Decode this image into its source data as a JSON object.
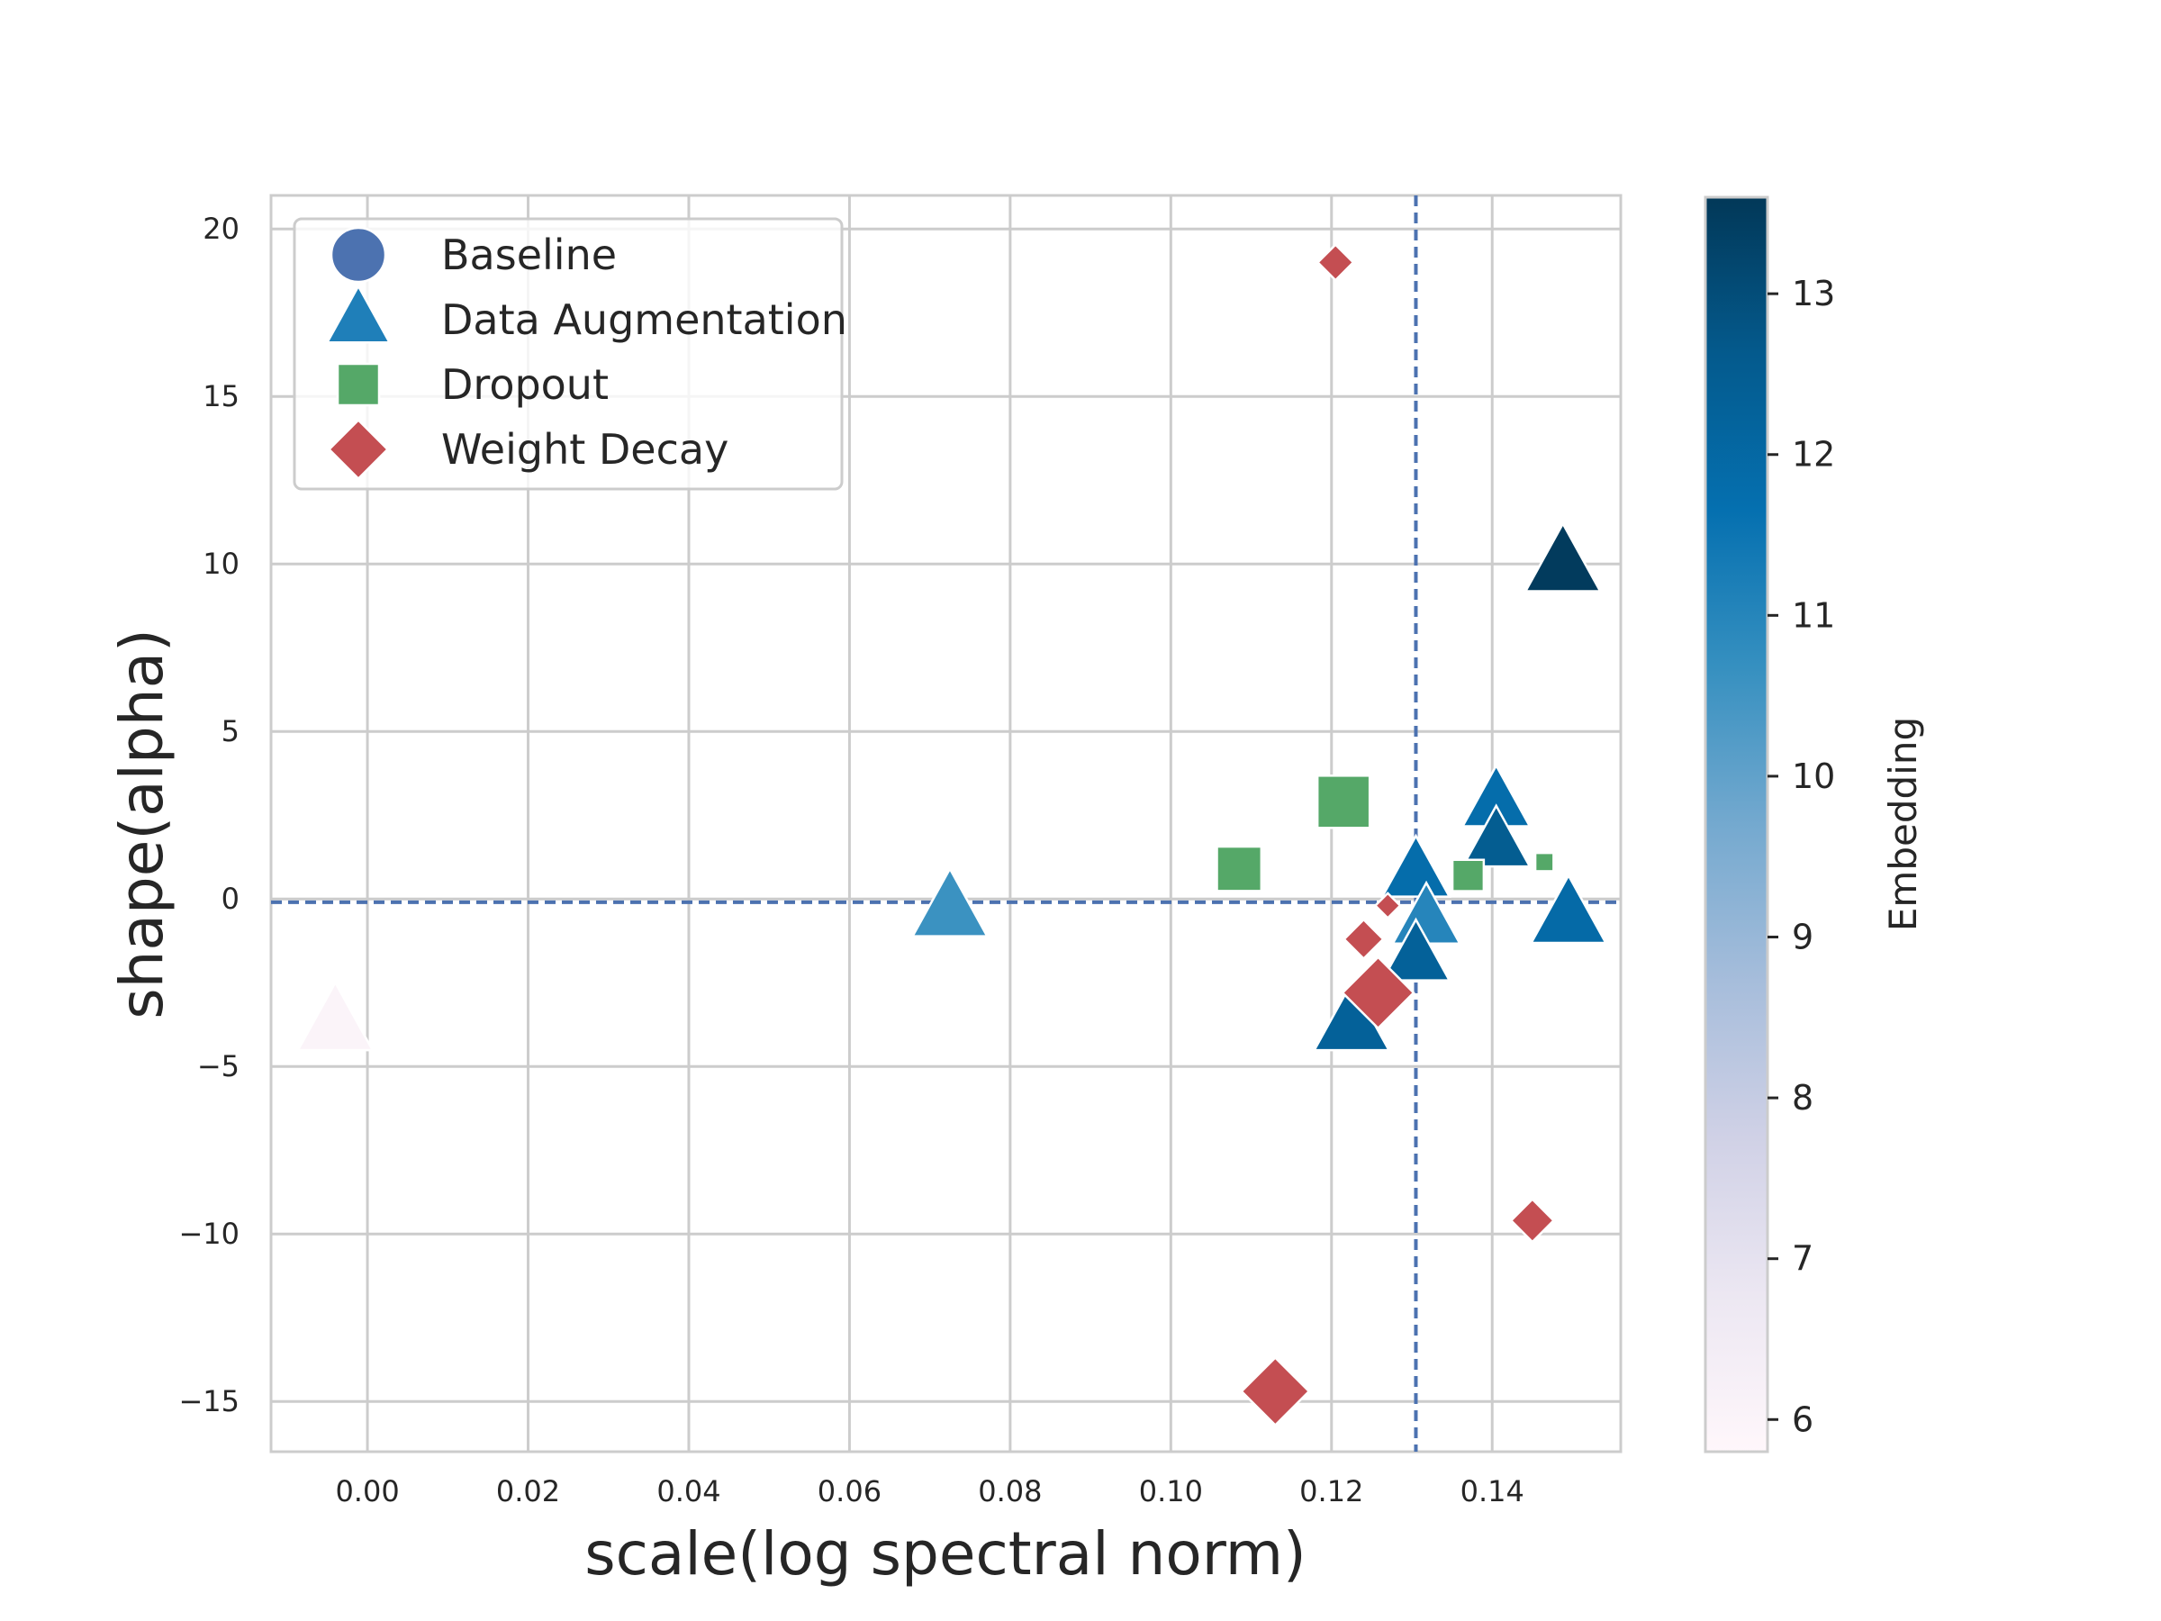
{
  "chart_data": {
    "type": "scatter",
    "xlabel": "scale(log spectral norm)",
    "ylabel": "shape(alpha)",
    "xlim": [
      -0.012,
      0.156
    ],
    "ylim": [
      -16.5,
      21
    ],
    "x_ticks": [
      0.0,
      0.02,
      0.04,
      0.06,
      0.08,
      0.1,
      0.12,
      0.14
    ],
    "x_tick_labels": [
      "0.00",
      "0.02",
      "0.04",
      "0.06",
      "0.08",
      "0.10",
      "0.12",
      "0.14"
    ],
    "y_ticks": [
      -15,
      -10,
      -5,
      0,
      5,
      10,
      15,
      20
    ],
    "y_tick_labels": [
      "−15",
      "−10",
      "−5",
      "0",
      "5",
      "10",
      "15",
      "20"
    ],
    "grid": true,
    "reference_lines": {
      "x": 0.1305,
      "y": -0.1,
      "color": "#4c72b0",
      "style": "dashed"
    },
    "legend": {
      "position": "top-left",
      "entries": [
        {
          "label": "Baseline",
          "marker": "circle",
          "color": "#4c72b0"
        },
        {
          "label": "Data Augmentation",
          "marker": "triangle",
          "color": "#1f7fb9"
        },
        {
          "label": "Dropout",
          "marker": "square",
          "color": "#55a868"
        },
        {
          "label": "Weight Decay",
          "marker": "diamond",
          "color": "#c44e52"
        }
      ]
    },
    "colorbar": {
      "label": "Embedding",
      "range": [
        5.8,
        13.6
      ],
      "ticks": [
        6,
        7,
        8,
        9,
        10,
        11,
        12,
        13
      ],
      "tick_labels": [
        "6",
        "7",
        "8",
        "9",
        "10",
        "11",
        "12",
        "13"
      ],
      "colormap": [
        "#fff7fb",
        "#ece7f2",
        "#d0d1e6",
        "#a6bddb",
        "#74a9cf",
        "#3690c0",
        "#0570b0",
        "#045a8d",
        "#023858"
      ]
    },
    "series": [
      {
        "name": "Data Augmentation",
        "marker": "triangle",
        "points": [
          {
            "x": -0.004,
            "y": -3.7,
            "embedding": 6.0,
            "size": 1.0
          },
          {
            "x": 0.0725,
            "y": -0.3,
            "embedding": 10.6,
            "size": 1.0
          },
          {
            "x": 0.1225,
            "y": -3.7,
            "embedding": 12.3,
            "size": 1.0
          },
          {
            "x": 0.1305,
            "y": 0.8,
            "embedding": 11.8,
            "size": 0.9
          },
          {
            "x": 0.1318,
            "y": -0.6,
            "embedding": 11.0,
            "size": 0.9
          },
          {
            "x": 0.1305,
            "y": -1.7,
            "embedding": 12.3,
            "size": 0.9
          },
          {
            "x": 0.1405,
            "y": 2.9,
            "embedding": 11.8,
            "size": 0.9
          },
          {
            "x": 0.1405,
            "y": 1.7,
            "embedding": 12.5,
            "size": 0.9
          },
          {
            "x": 0.1488,
            "y": 10.0,
            "embedding": 13.5,
            "size": 1.0
          },
          {
            "x": 0.1495,
            "y": -0.5,
            "embedding": 11.9,
            "size": 1.0
          }
        ]
      },
      {
        "name": "Dropout",
        "marker": "square",
        "points": [
          {
            "x": 0.1085,
            "y": 0.9,
            "size": 0.85
          },
          {
            "x": 0.1215,
            "y": 2.9,
            "size": 1.0
          },
          {
            "x": 0.137,
            "y": 0.7,
            "size": 0.6
          },
          {
            "x": 0.1465,
            "y": 1.1,
            "size": 0.35
          }
        ]
      },
      {
        "name": "Weight Decay",
        "marker": "diamond",
        "points": [
          {
            "x": 0.1205,
            "y": 19.0,
            "size": 0.5
          },
          {
            "x": 0.127,
            "y": -0.2,
            "size": 0.35
          },
          {
            "x": 0.124,
            "y": -1.2,
            "size": 0.55
          },
          {
            "x": 0.1258,
            "y": -2.8,
            "size": 1.0
          },
          {
            "x": 0.145,
            "y": -9.6,
            "size": 0.6
          },
          {
            "x": 0.113,
            "y": -14.7,
            "size": 0.95
          }
        ]
      }
    ]
  }
}
